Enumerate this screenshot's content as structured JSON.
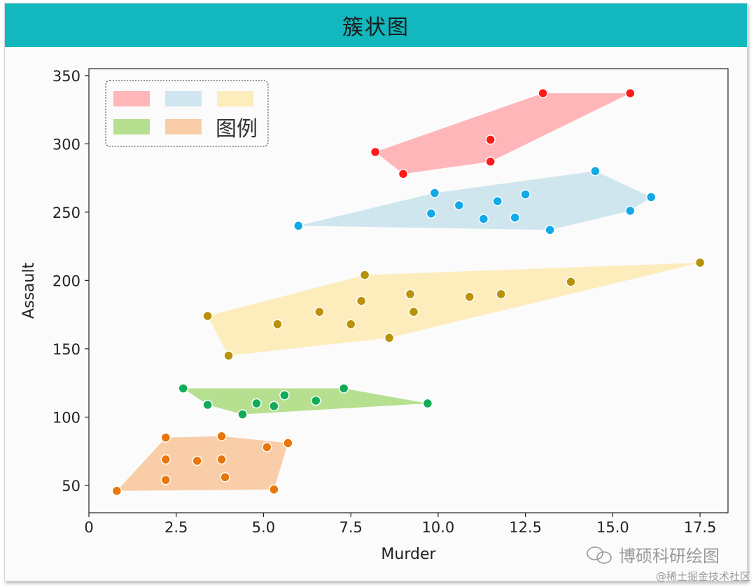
{
  "header": {
    "title": "簇状图"
  },
  "watermark": {
    "brand": "博硕科研绘图",
    "credit": "@稀土掘金技术社区"
  },
  "icons": {
    "brand_icon": "wechat-icon"
  },
  "chart_data": {
    "type": "scatter",
    "title": "",
    "xlabel": "Murder",
    "ylabel": "Assault",
    "xlim": [
      0,
      18.3
    ],
    "ylim": [
      30,
      355
    ],
    "xticks": [
      0,
      2.5,
      5.0,
      7.5,
      10.0,
      12.5,
      15.0,
      17.5
    ],
    "xtick_labels": [
      "0",
      "2.5",
      "5.0",
      "7.5",
      "10.0",
      "12.5",
      "15.0",
      "17.5"
    ],
    "yticks": [
      50,
      100,
      150,
      200,
      250,
      300,
      350
    ],
    "ytick_labels": [
      "50",
      "100",
      "150",
      "200",
      "250",
      "300",
      "350"
    ],
    "grid": false,
    "legend": {
      "placement": "top-left",
      "title": "图例"
    },
    "series": [
      {
        "color": "#ff1a1a",
        "fill": "#ffb6b9",
        "hull": true,
        "x": [
          8.2,
          9.0,
          11.5,
          11.5,
          13.0,
          15.5
        ],
        "y": [
          294,
          278,
          287,
          303,
          337,
          337
        ]
      },
      {
        "color": "#11a9e6",
        "fill": "#cfe6ef",
        "hull": true,
        "x": [
          6.0,
          9.8,
          9.9,
          10.6,
          11.3,
          11.7,
          12.2,
          12.5,
          13.2,
          14.5,
          15.5,
          16.1
        ],
        "y": [
          240,
          249,
          264,
          255,
          245,
          258,
          246,
          263,
          237,
          280,
          251,
          261
        ]
      },
      {
        "color": "#b8920a",
        "fill": "#fdecbc",
        "hull": true,
        "x": [
          3.4,
          4.0,
          5.4,
          6.6,
          7.5,
          7.8,
          7.9,
          8.6,
          9.2,
          9.3,
          10.9,
          11.8,
          13.8,
          17.5
        ],
        "y": [
          174,
          145,
          168,
          177,
          168,
          185,
          204,
          158,
          190,
          177,
          188,
          190,
          199,
          213
        ]
      },
      {
        "color": "#12ab58",
        "fill": "#b6e08f",
        "hull": true,
        "x": [
          2.7,
          3.4,
          4.4,
          4.8,
          5.3,
          5.6,
          6.5,
          7.3,
          9.7
        ],
        "y": [
          121,
          109,
          102,
          110,
          108,
          116,
          112,
          121,
          110
        ]
      },
      {
        "color": "#e8760a",
        "fill": "#f8cda8",
        "hull": true,
        "x": [
          0.8,
          2.2,
          2.2,
          2.2,
          3.1,
          3.8,
          3.8,
          3.9,
          5.1,
          5.3,
          5.7
        ],
        "y": [
          46,
          85,
          69,
          54,
          68,
          69,
          86,
          56,
          78,
          47,
          81
        ]
      }
    ]
  }
}
